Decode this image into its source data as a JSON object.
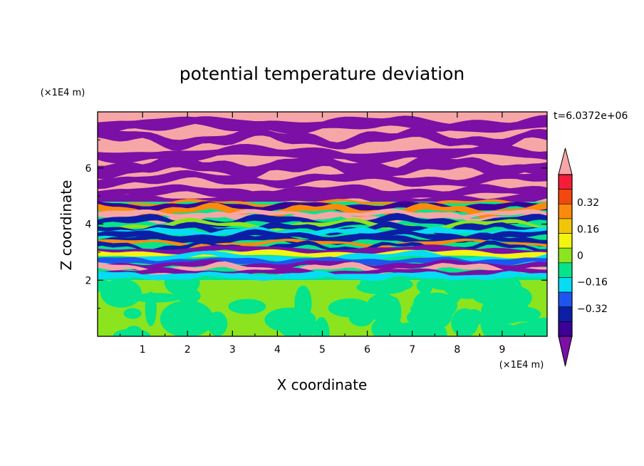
{
  "chart_data": {
    "type": "heatmap",
    "title": "potential temperature deviation",
    "xlabel": "X coordinate",
    "ylabel": "Z coordinate",
    "x_unit": "(×1E4 m)",
    "y_unit": "(×1E4 m)",
    "time_label": "t=6.0372e+06",
    "xlim": [
      0,
      10
    ],
    "ylim": [
      0,
      8
    ],
    "x_ticks": [
      "1",
      "2",
      "3",
      "4",
      "5",
      "6",
      "7",
      "8",
      "9"
    ],
    "y_ticks": [
      "2",
      "4",
      "6"
    ],
    "colorbar": {
      "levels": [
        -0.48,
        -0.4,
        -0.32,
        -0.24,
        -0.16,
        -0.08,
        0,
        0.08,
        0.16,
        0.24,
        0.32,
        0.4,
        0.48
      ],
      "labels": [
        "0.32",
        "0.16",
        "0",
        "−0.16",
        "−0.32"
      ],
      "colors": [
        "#7b0fa6",
        "#3c0096",
        "#0c1ea6",
        "#1f55ef",
        "#06dcf2",
        "#05e48c",
        "#8ce41e",
        "#f4f411",
        "#f1c607",
        "#fa8a0c",
        "#f2470f",
        "#f51c3a",
        "#f6a6a6"
      ],
      "extend": "both"
    },
    "layers": [
      {
        "z_range": [
          0,
          2.0
        ],
        "dominant": [
          "#8ce41e",
          "#05e48c"
        ],
        "description": "lower layer, mostly 0 to +0.08 with slightly negative cells"
      },
      {
        "z_range": [
          2.0,
          4.8
        ],
        "dominant": [
          "#05e48c",
          "#06dcf2",
          "#3c0096",
          "#f4f411",
          "#fa8a0c",
          "#f2470f",
          "#f6a6a6"
        ],
        "description": "mixing layer, full range of values"
      },
      {
        "z_range": [
          4.8,
          8.0
        ],
        "dominant": [
          "#f6a6a6",
          "#7b0fa6"
        ],
        "description": "upper layer, alternating strongly positive and strongly negative bands"
      }
    ]
  }
}
